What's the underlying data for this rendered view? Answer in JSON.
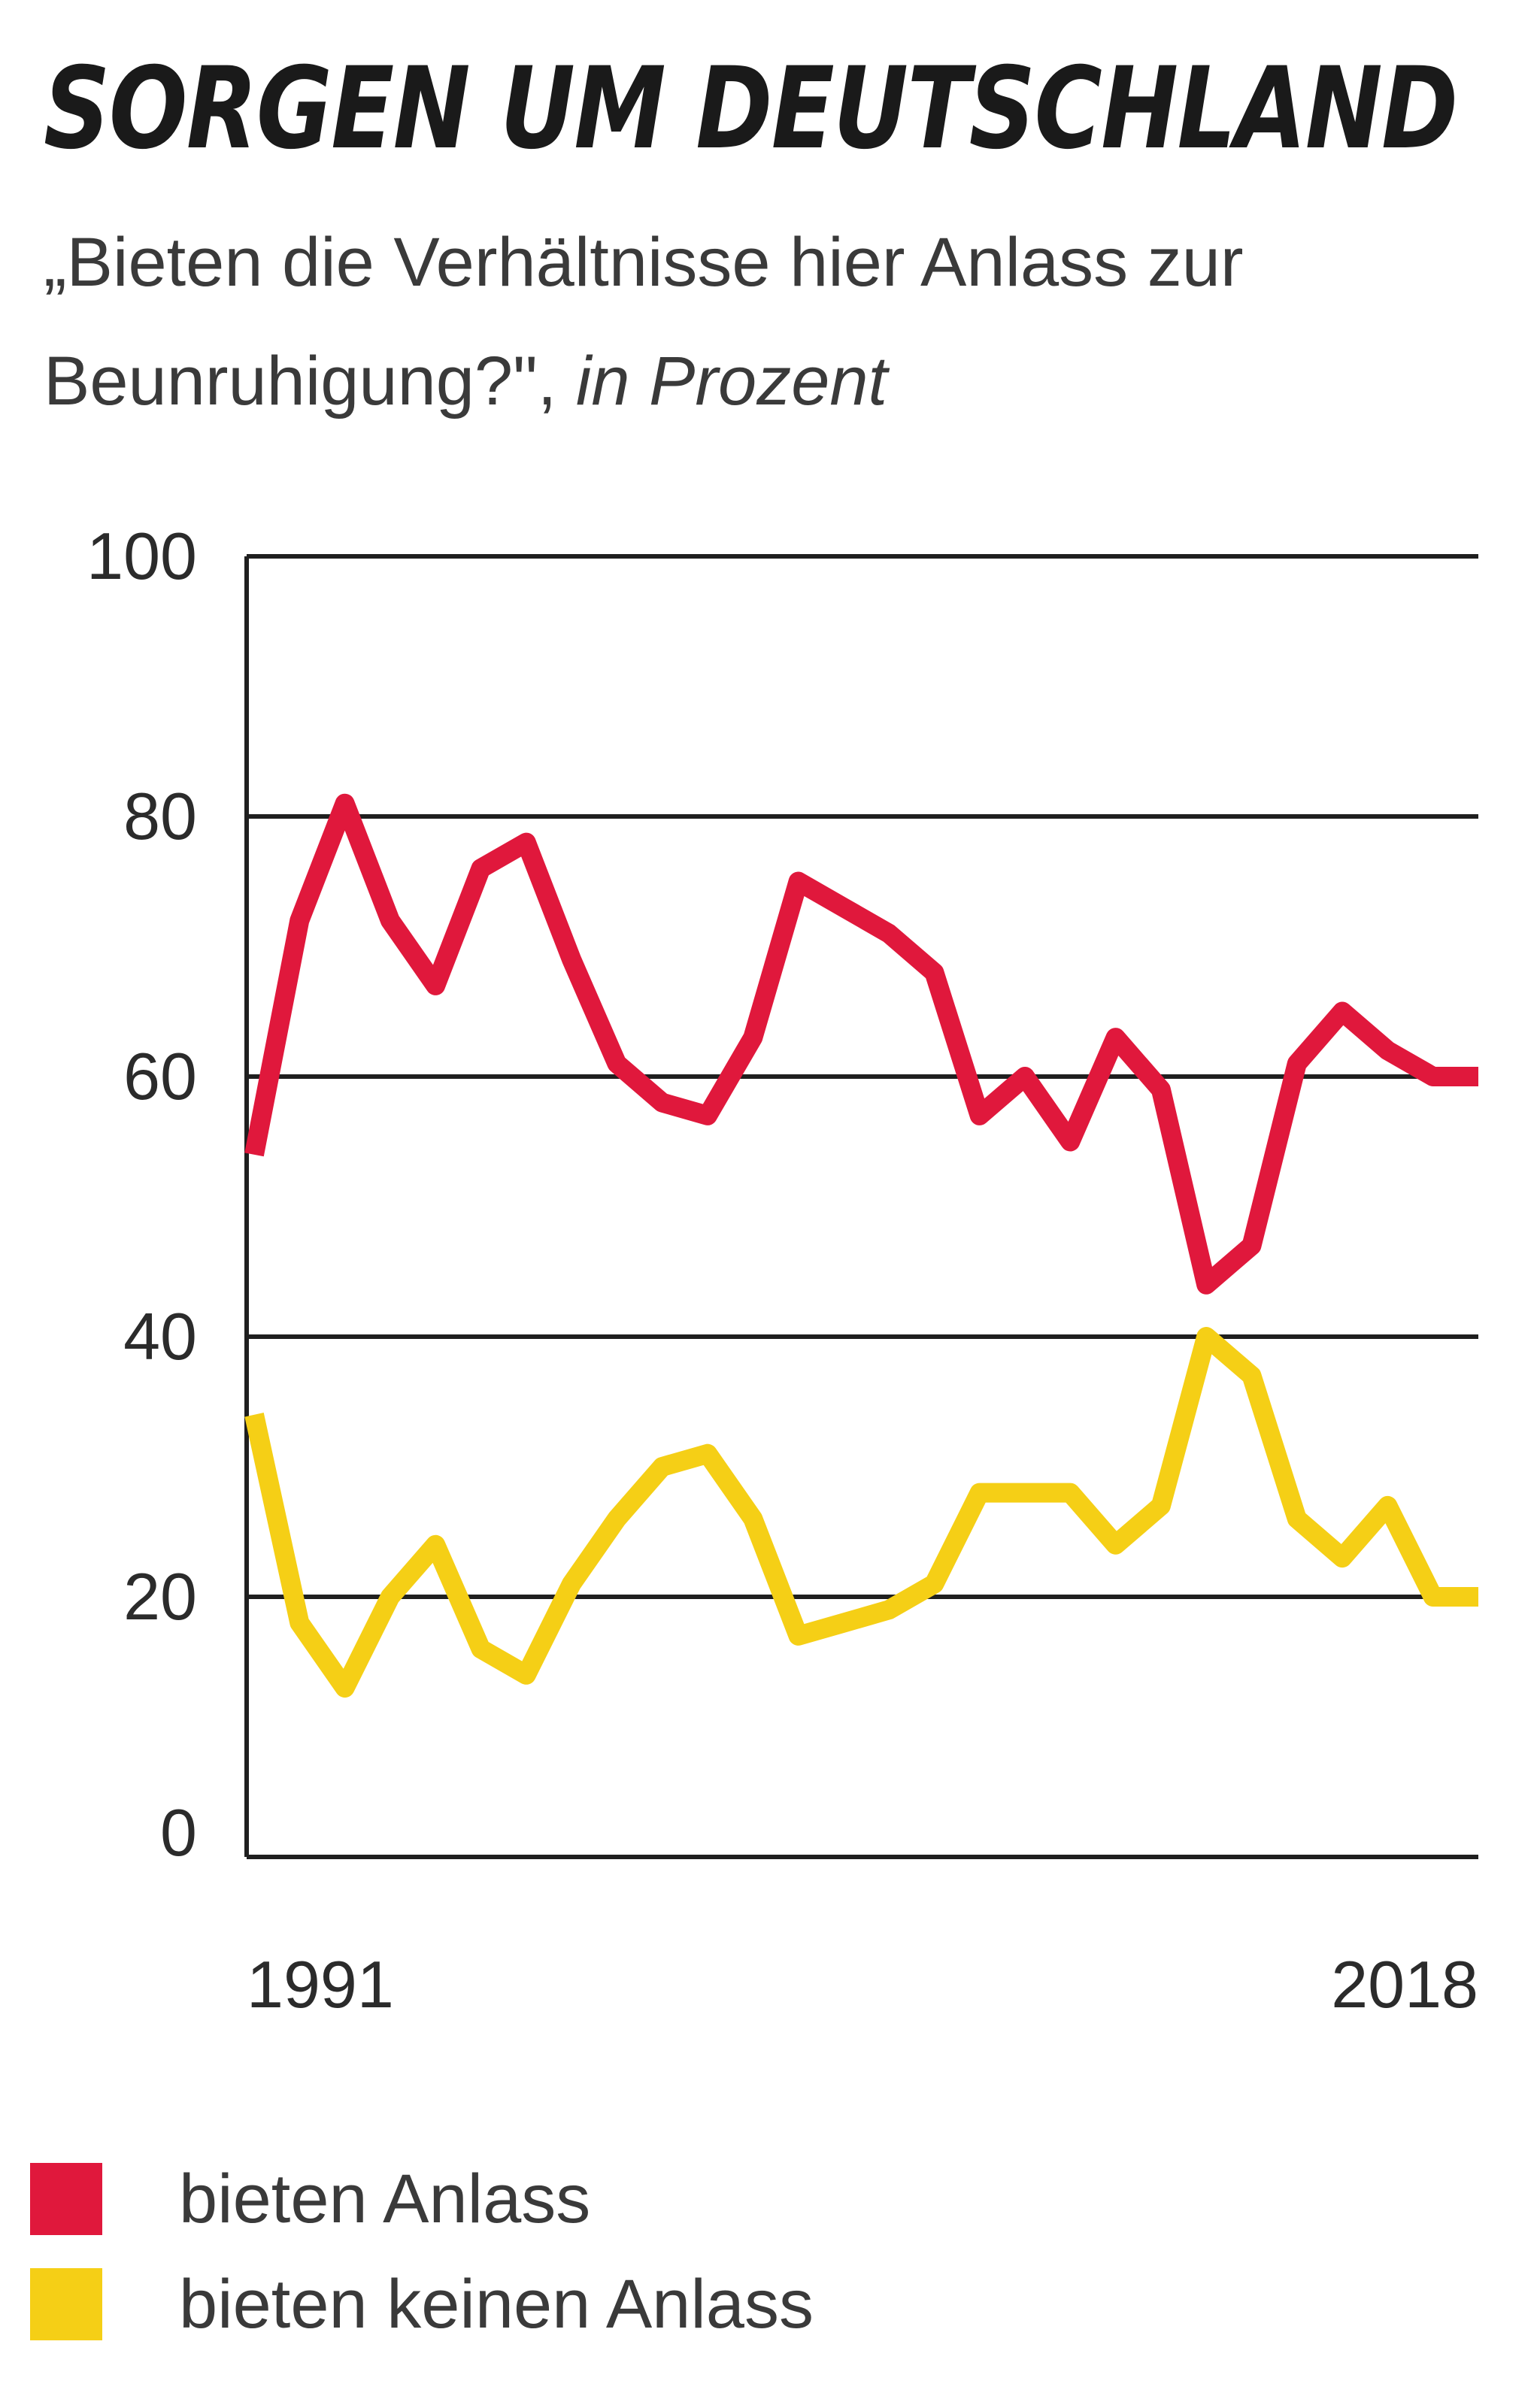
{
  "chart_data": {
    "type": "line",
    "title": "SORGEN UM DEUTSCHLAND",
    "subtitle": "„Bieten die Verhältnisse hier Anlass zur Beunruhigung?\",",
    "subtitle_unit": "in Prozent",
    "ylim": [
      0,
      100
    ],
    "yticks": [
      "0",
      "20",
      "40",
      "60",
      "80",
      "100"
    ],
    "xlim": [
      1991,
      2018
    ],
    "xtick_labels": [
      "1991",
      "2018"
    ],
    "grid": true,
    "legend_position": "bottom",
    "series": [
      {
        "name": "bieten Anlass",
        "color": "#e0183c",
        "x": [
          1991,
          1992,
          1993,
          1994,
          1995,
          1996,
          1997,
          1998,
          1999,
          2000,
          2001,
          2002,
          2003,
          2004,
          2005,
          2006,
          2007,
          2008,
          2009,
          2010,
          2011,
          2012,
          2013,
          2014,
          2015,
          2016,
          2017,
          2018
        ],
        "values": [
          54,
          72,
          81,
          72,
          67,
          76,
          78,
          69,
          61,
          58,
          57,
          63,
          75,
          73,
          71,
          68,
          57,
          60,
          55,
          63,
          59,
          44,
          47,
          61,
          65,
          62,
          60,
          60
        ]
      },
      {
        "name": "bieten keinen Anlass",
        "color": "#f5cf16",
        "x": [
          1991,
          1992,
          1993,
          1994,
          1995,
          1996,
          1997,
          1998,
          1999,
          2000,
          2001,
          2002,
          2003,
          2004,
          2005,
          2006,
          2007,
          2008,
          2009,
          2010,
          2011,
          2012,
          2013,
          2014,
          2015,
          2016,
          2017,
          2018
        ],
        "values": [
          34,
          18,
          13,
          20,
          24,
          16,
          14,
          21,
          26,
          30,
          31,
          26,
          17,
          18,
          19,
          21,
          28,
          28,
          28,
          24,
          27,
          40,
          37,
          26,
          23,
          27,
          20,
          20
        ]
      }
    ]
  }
}
